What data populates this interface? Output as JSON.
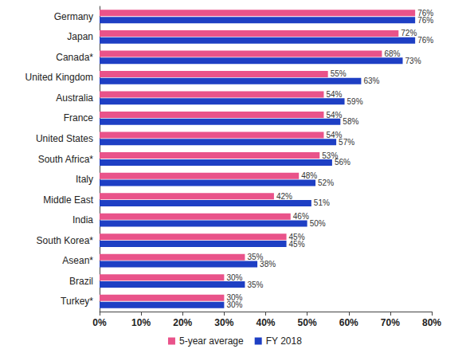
{
  "chart_data": {
    "type": "bar",
    "orientation": "horizontal",
    "categories": [
      "Germany",
      "Japan",
      "Canada*",
      "United Kingdom",
      "Australia",
      "France",
      "United States",
      "South Africa*",
      "Italy",
      "Middle East",
      "India",
      "South Korea*",
      "Asean*",
      "Brazil",
      "Turkey*"
    ],
    "series": [
      {
        "name": "5-year average",
        "color": "#e9538a",
        "values": [
          76,
          72,
          68,
          55,
          54,
          54,
          54,
          53,
          48,
          42,
          46,
          45,
          35,
          30,
          30
        ],
        "value_labels": [
          "76%",
          "72%",
          "68%",
          "55%",
          "54%",
          "54%",
          "54%",
          "53%",
          "48%",
          "42%",
          "46%",
          "45%",
          "35%",
          "30%",
          "30%"
        ]
      },
      {
        "name": "FY 2018",
        "color": "#1e3fc4",
        "values": [
          76,
          76,
          73,
          63,
          59,
          58,
          57,
          56,
          52,
          51,
          50,
          45,
          38,
          35,
          30
        ],
        "value_labels": [
          "76%",
          "76%",
          "73%",
          "63%",
          "59%",
          "58%",
          "57%",
          "56%",
          "52%",
          "51%",
          "50%",
          "45%",
          "38%",
          "35%",
          "30%"
        ]
      }
    ],
    "xlim": [
      0,
      80
    ],
    "xticks": [
      {
        "value": 0,
        "label": "0%"
      },
      {
        "value": 10,
        "label": "10%"
      },
      {
        "value": 20,
        "label": "20%"
      },
      {
        "value": 30,
        "label": "30%"
      },
      {
        "value": 40,
        "label": "40%"
      },
      {
        "value": 50,
        "label": "50%"
      },
      {
        "value": 60,
        "label": "60%"
      },
      {
        "value": 70,
        "label": "70%"
      },
      {
        "value": 80,
        "label": "80%"
      }
    ],
    "data_labels": true,
    "grid": false,
    "legend": "bottom"
  }
}
